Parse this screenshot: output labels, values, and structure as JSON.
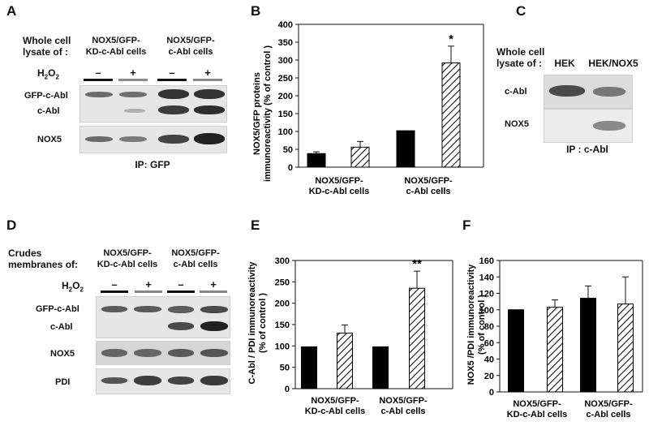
{
  "panelA": {
    "letter": "A",
    "lysate_label_1": "Whole cell",
    "lysate_label_2": "lysate of :",
    "group1_line1": "NOX5/GFP-",
    "group1_line2": "KD-c-Abl cells",
    "group2_line1": "NOX5/GFP-",
    "group2_line2": "c-Abl cells",
    "h2o2": "H2O2",
    "lane_signs": [
      "–",
      "+",
      "–",
      "+"
    ],
    "row_labels": [
      "GFP-c-Abl",
      "c-Abl",
      "NOX5"
    ],
    "ip_label": "IP: GFP"
  },
  "panelB": {
    "letter": "B",
    "ylabel_1": "NOX5/GFP proteins",
    "ylabel_2": "immunoreactivity (% of control )",
    "group_labels": [
      [
        "NOX5/GFP-",
        "KD-c-Abl cells"
      ],
      [
        "NOX5/GFP-",
        "c-Abl cells"
      ]
    ],
    "significance": "*"
  },
  "panelC": {
    "letter": "C",
    "lysate_label_1": "Whole cell",
    "lysate_label_2": "lysate of :",
    "lanes": [
      "HEK",
      "HEK/NOX5"
    ],
    "row_labels": [
      "c-Abl",
      "NOX5"
    ],
    "ip_label": "IP : c-Abl"
  },
  "panelD": {
    "letter": "D",
    "crude_label_1": "Crudes",
    "crude_label_2": "membranes of:",
    "group1_line1": "NOX5/GFP-",
    "group1_line2": "KD-c-Abl cells",
    "group2_line1": "NOX5/GFP-",
    "group2_line2": "c-Abl cells",
    "h2o2": "H2O2",
    "lane_signs": [
      "–",
      "+",
      "–",
      "+"
    ],
    "row_labels": [
      "GFP-c-Abl",
      "c-Abl",
      "NOX5",
      "PDI"
    ]
  },
  "panelE": {
    "letter": "E",
    "ylabel_1": "C-Abl / PDI immunoreactivity",
    "ylabel_2": "(% of control )",
    "group_labels": [
      [
        "NOX5/GFP-",
        "KD-c-Abl cells"
      ],
      [
        "NOX5/GFP-",
        "c-Abl cells"
      ]
    ],
    "significance": "**"
  },
  "panelF": {
    "letter": "F",
    "ylabel_1": "NOX5 /PDI immunoreactivity",
    "ylabel_2": "(% of control )",
    "group_labels": [
      [
        "NOX5/GFP-",
        "KD-c-Abl cells"
      ],
      [
        "NOX5/GFP-",
        "c-Abl cells"
      ]
    ]
  },
  "chart_data": [
    {
      "id": "B",
      "type": "bar",
      "categories": [
        "NOX5/GFP-KD-c-Abl cells –",
        "NOX5/GFP-KD-c-Abl cells +",
        "NOX5/GFP-c-Abl cells –",
        "NOX5/GFP-c-Abl cells +"
      ],
      "values": [
        38,
        56,
        102,
        292
      ],
      "errors": [
        5,
        16,
        0,
        47
      ],
      "fills": [
        "solid",
        "hatched",
        "solid",
        "hatched"
      ],
      "ylabel": "NOX5/GFP proteins immunoreactivity (% of control )",
      "ylim": [
        0,
        400
      ],
      "yticks": [
        0,
        50,
        100,
        150,
        200,
        250,
        300,
        350,
        400
      ],
      "annotations": [
        {
          "bar": 3,
          "text": "*"
        }
      ]
    },
    {
      "id": "E",
      "type": "bar",
      "categories": [
        "NOX5/GFP-KD-c-Abl cells –",
        "NOX5/GFP-KD-c-Abl cells +",
        "NOX5/GFP-c-Abl cells –",
        "NOX5/GFP-c-Abl cells +"
      ],
      "values": [
        98,
        130,
        98,
        235
      ],
      "errors": [
        0,
        19,
        0,
        40
      ],
      "fills": [
        "solid",
        "hatched",
        "solid",
        "hatched"
      ],
      "ylabel": "C-Abl / PDI immunoreactivity (% of control )",
      "ylim": [
        0,
        300
      ],
      "yticks": [
        0,
        50,
        100,
        150,
        200,
        250,
        300
      ],
      "annotations": [
        {
          "bar": 3,
          "text": "**"
        }
      ]
    },
    {
      "id": "F",
      "type": "bar",
      "categories": [
        "NOX5/GFP-KD-c-Abl cells –",
        "NOX5/GFP-KD-c-Abl cells +",
        "NOX5/GFP-c-Abl cells –",
        "NOX5/GFP-c-Abl cells +"
      ],
      "values": [
        100,
        103,
        114,
        107
      ],
      "errors": [
        0,
        9,
        15,
        33
      ],
      "fills": [
        "solid",
        "hatched",
        "solid",
        "hatched"
      ],
      "ylabel": "NOX5 /PDI immunoreactivity (% of control )",
      "ylim": [
        0,
        160
      ],
      "yticks": [
        0,
        20,
        40,
        60,
        80,
        100,
        120,
        140,
        160
      ],
      "annotations": []
    }
  ]
}
